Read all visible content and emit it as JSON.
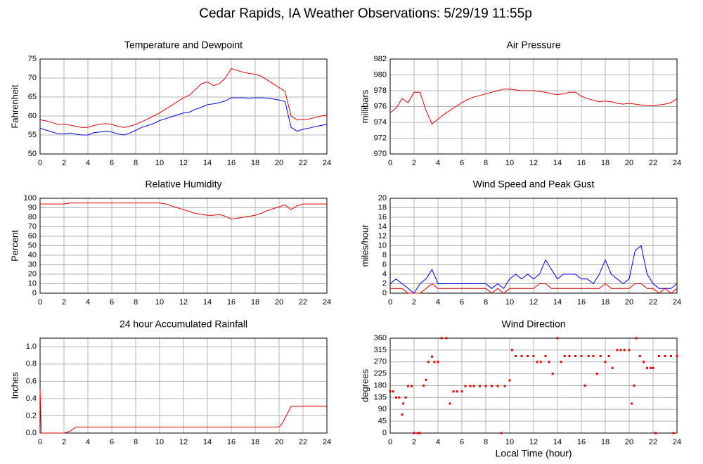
{
  "title": "Cedar Rapids, IA Weather Observations: 5/29/19 11:55p",
  "chart_data": [
    {
      "type": "line",
      "title": "Temperature and Dewpoint",
      "ylabel": "Fahrenheit",
      "xlim": [
        0,
        24
      ],
      "xticks": [
        0,
        2,
        4,
        6,
        8,
        10,
        12,
        14,
        16,
        18,
        20,
        22,
        24
      ],
      "ylim": [
        50,
        75
      ],
      "yticks": [
        50,
        55,
        60,
        65,
        70,
        75
      ],
      "grid": true,
      "x": [
        0,
        0.5,
        1,
        1.5,
        2,
        2.5,
        3,
        3.5,
        4,
        4.5,
        5,
        5.5,
        6,
        6.5,
        7,
        7.5,
        8,
        8.5,
        9,
        9.5,
        10,
        10.5,
        11,
        11.5,
        12,
        12.5,
        13,
        13.5,
        14,
        14.5,
        15,
        15.5,
        16,
        16.5,
        17,
        17.5,
        18,
        18.5,
        19,
        19.5,
        20,
        20.5,
        21,
        21.5,
        22,
        22.5,
        23,
        23.5,
        24
      ],
      "series": [
        {
          "color": "#e00000",
          "values": [
            59,
            58.7,
            58.3,
            57.8,
            57.8,
            57.6,
            57.3,
            57,
            57,
            57.5,
            57.8,
            58,
            57.8,
            57.3,
            57,
            57.3,
            57.8,
            58.5,
            59.2,
            60,
            60.8,
            61.8,
            62.8,
            63.8,
            64.8,
            65.5,
            67,
            68.5,
            69,
            68,
            68.5,
            70,
            72.5,
            72,
            71.5,
            71.2,
            71,
            70.5,
            69.5,
            68.5,
            67.5,
            66.5,
            60,
            59,
            59,
            59.2,
            59.6,
            60,
            60.2
          ]
        },
        {
          "color": "#0000e0",
          "values": [
            56.8,
            56.3,
            55.8,
            55.3,
            55.3,
            55.5,
            55.2,
            55,
            55,
            55.6,
            55.8,
            56,
            55.8,
            55.3,
            55,
            55.5,
            56.2,
            57,
            57.5,
            58,
            58.8,
            59.3,
            59.8,
            60.3,
            60.8,
            61,
            61.8,
            62.3,
            63,
            63.2,
            63.5,
            64,
            64.8,
            64.8,
            64.8,
            64.7,
            64.8,
            64.8,
            64.7,
            64.5,
            64.2,
            63.8,
            57,
            56,
            56.5,
            56.8,
            57.2,
            57.5,
            57.8
          ]
        }
      ]
    },
    {
      "type": "line",
      "title": "Air Pressure",
      "ylabel": "millibars",
      "xlim": [
        0,
        24
      ],
      "xticks": [
        0,
        2,
        4,
        6,
        8,
        10,
        12,
        14,
        16,
        18,
        20,
        22,
        24
      ],
      "ylim": [
        970,
        982
      ],
      "yticks": [
        970,
        972,
        974,
        976,
        978,
        980,
        982
      ],
      "grid": true,
      "x": [
        0,
        0.5,
        1,
        1.5,
        2,
        2.5,
        3,
        3.5,
        4,
        4.5,
        5,
        5.5,
        6,
        6.5,
        7,
        7.5,
        8,
        8.5,
        9,
        9.5,
        10,
        10.5,
        11,
        11.5,
        12,
        12.5,
        13,
        13.5,
        14,
        14.5,
        15,
        15.5,
        16,
        16.5,
        17,
        17.5,
        18,
        18.5,
        19,
        19.5,
        20,
        20.5,
        21,
        21.5,
        22,
        22.5,
        23,
        23.5,
        24
      ],
      "series": [
        {
          "color": "#e00000",
          "values": [
            975.2,
            975.8,
            977,
            976.5,
            977.8,
            977.8,
            975.5,
            973.8,
            974.4,
            975,
            975.5,
            976,
            976.5,
            976.9,
            977.2,
            977.4,
            977.6,
            977.8,
            978,
            978.2,
            978.2,
            978.1,
            978,
            978,
            978,
            977.9,
            977.8,
            977.6,
            977.5,
            977.6,
            977.8,
            977.8,
            977.3,
            977,
            976.8,
            976.6,
            976.7,
            976.6,
            976.4,
            976.3,
            976.4,
            976.3,
            976.2,
            976.1,
            976.1,
            976.2,
            976.3,
            976.5,
            977
          ]
        }
      ]
    },
    {
      "type": "line",
      "title": "Relative Humidity",
      "ylabel": "Percent",
      "xlim": [
        0,
        24
      ],
      "xticks": [
        0,
        2,
        4,
        6,
        8,
        10,
        12,
        14,
        16,
        18,
        20,
        22,
        24
      ],
      "ylim": [
        0,
        100
      ],
      "yticks": [
        0,
        10,
        20,
        30,
        40,
        50,
        60,
        70,
        80,
        90,
        100
      ],
      "grid": true,
      "x": [
        0,
        0.5,
        1,
        1.5,
        2,
        2.5,
        3,
        3.5,
        4,
        4.5,
        5,
        5.5,
        6,
        6.5,
        7,
        7.5,
        8,
        8.5,
        9,
        9.5,
        10,
        10.5,
        11,
        11.5,
        12,
        12.5,
        13,
        13.5,
        14,
        14.5,
        15,
        15.5,
        16,
        16.5,
        17,
        17.5,
        18,
        18.5,
        19,
        19.5,
        20,
        20.5,
        21,
        21.5,
        22,
        22.5,
        23,
        23.5,
        24
      ],
      "series": [
        {
          "color": "#e00000",
          "values": [
            94,
            94,
            94,
            94,
            94,
            95,
            95,
            95,
            95,
            95,
            95,
            95,
            95,
            95,
            95,
            95,
            95,
            95,
            95,
            95,
            95,
            94,
            92,
            90,
            88,
            86,
            84,
            83,
            82,
            82,
            83,
            81,
            78,
            79,
            80,
            81,
            82,
            84,
            87,
            89,
            91,
            93,
            88,
            92,
            94,
            94,
            94,
            94,
            94
          ]
        }
      ]
    },
    {
      "type": "line",
      "title": "Wind Speed and Peak Gust",
      "ylabel": "miles/hour",
      "xlim": [
        0,
        24
      ],
      "xticks": [
        0,
        2,
        4,
        6,
        8,
        10,
        12,
        14,
        16,
        18,
        20,
        22,
        24
      ],
      "ylim": [
        0,
        20
      ],
      "yticks": [
        0,
        2,
        4,
        6,
        8,
        10,
        12,
        14,
        16,
        18,
        20
      ],
      "grid": true,
      "x": [
        0,
        0.5,
        1,
        1.5,
        2,
        2.5,
        3,
        3.5,
        4,
        4.5,
        5,
        5.5,
        6,
        6.5,
        7,
        7.5,
        8,
        8.5,
        9,
        9.5,
        10,
        10.5,
        11,
        11.5,
        12,
        12.5,
        13,
        13.5,
        14,
        14.5,
        15,
        15.5,
        16,
        16.5,
        17,
        17.5,
        18,
        18.5,
        19,
        19.5,
        20,
        20.5,
        21,
        21.5,
        22,
        22.5,
        23,
        23.5,
        24
      ],
      "series": [
        {
          "color": "#0000e0",
          "values": [
            2,
            3,
            2,
            1,
            0,
            2,
            3,
            5,
            2,
            2,
            2,
            2,
            2,
            2,
            2,
            2,
            2,
            1,
            2,
            1,
            3,
            4,
            3,
            4,
            3,
            4,
            7,
            5,
            3,
            4,
            4,
            4,
            3,
            3,
            2,
            4,
            7,
            4,
            3,
            2,
            3,
            9,
            10,
            4,
            2,
            1,
            1,
            1,
            2
          ]
        },
        {
          "color": "#e00000",
          "values": [
            1,
            1,
            1,
            0,
            0,
            0,
            1,
            2,
            1,
            1,
            1,
            1,
            1,
            1,
            1,
            1,
            1,
            0,
            1,
            0,
            1,
            1,
            1,
            1,
            1,
            2,
            2,
            1,
            1,
            1,
            1,
            1,
            1,
            1,
            1,
            1,
            2,
            1,
            1,
            1,
            1,
            2,
            2,
            1,
            1,
            0,
            1,
            0,
            1
          ]
        }
      ]
    },
    {
      "type": "line",
      "title": "24 hour Accumulated Rainfall",
      "ylabel": "Inches",
      "xlim": [
        0,
        24
      ],
      "xticks": [
        0,
        2,
        4,
        6,
        8,
        10,
        12,
        14,
        16,
        18,
        20,
        22,
        24
      ],
      "ylim": [
        0,
        1.1
      ],
      "yticks": [
        {
          "value": 0,
          "label": "0.0"
        },
        0.2,
        0.4,
        0.6,
        0.8,
        {
          "value": 1,
          "label": "1.0"
        }
      ],
      "grid": true,
      "x": [
        0,
        0.1,
        0.5,
        1,
        1.5,
        2,
        2.5,
        3,
        3.5,
        4,
        6,
        8,
        10,
        12,
        14,
        16,
        18,
        20,
        20.3,
        20.6,
        21,
        22,
        23,
        24
      ],
      "series": [
        {
          "color": "#e00000",
          "values": [
            0.5,
            0,
            0,
            0,
            0,
            0,
            0.02,
            0.07,
            0.07,
            0.07,
            0.07,
            0.07,
            0.07,
            0.07,
            0.07,
            0.07,
            0.07,
            0.07,
            0.12,
            0.2,
            0.31,
            0.31,
            0.31,
            0.31
          ]
        }
      ]
    },
    {
      "type": "scatter",
      "title": "Wind Direction",
      "ylabel": "degrees",
      "xlabel": "Local Time (hour)",
      "xlim": [
        0,
        24
      ],
      "xticks": [
        0,
        2,
        4,
        6,
        8,
        10,
        12,
        14,
        16,
        18,
        20,
        22,
        24
      ],
      "ylim": [
        0,
        360
      ],
      "yticks": [
        0,
        45,
        90,
        135,
        180,
        225,
        270,
        315,
        360
      ],
      "grid": true,
      "x": [
        0,
        0.25,
        0.5,
        0.75,
        1,
        1.1,
        1.3,
        1.5,
        1.8,
        2,
        2.3,
        2.5,
        2.8,
        3,
        3.2,
        3.5,
        3.7,
        4,
        4.3,
        4.7,
        5,
        5.3,
        5.6,
        6,
        6.3,
        6.7,
        7,
        7.5,
        8,
        8.5,
        9,
        9.3,
        9.6,
        10,
        10.2,
        10.5,
        11,
        11.5,
        12,
        12.3,
        12.6,
        13,
        13.3,
        13.6,
        14,
        14.3,
        14.6,
        15,
        15.5,
        16,
        16.3,
        16.6,
        17,
        17.3,
        17.6,
        18,
        18.3,
        18.6,
        19,
        19.3,
        19.6,
        20,
        20.2,
        20.4,
        20.6,
        20.9,
        21.2,
        21.5,
        21.8,
        22,
        22.2,
        22.5,
        23,
        23.5,
        23.7,
        24
      ],
      "series": [
        {
          "color": "#e00000",
          "values": [
            158,
            158,
            135,
            135,
            70,
            112,
            135,
            178,
            178,
            0,
            0,
            0,
            180,
            202,
            270,
            290,
            270,
            270,
            360,
            360,
            112,
            158,
            158,
            158,
            178,
            178,
            178,
            178,
            178,
            178,
            178,
            0,
            178,
            200,
            315,
            292,
            292,
            292,
            292,
            270,
            270,
            292,
            270,
            225,
            360,
            270,
            292,
            292,
            292,
            292,
            180,
            292,
            292,
            225,
            292,
            270,
            292,
            247,
            315,
            315,
            315,
            315,
            112,
            180,
            360,
            292,
            270,
            247,
            247,
            247,
            0,
            292,
            292,
            292,
            0,
            292
          ]
        }
      ]
    }
  ]
}
